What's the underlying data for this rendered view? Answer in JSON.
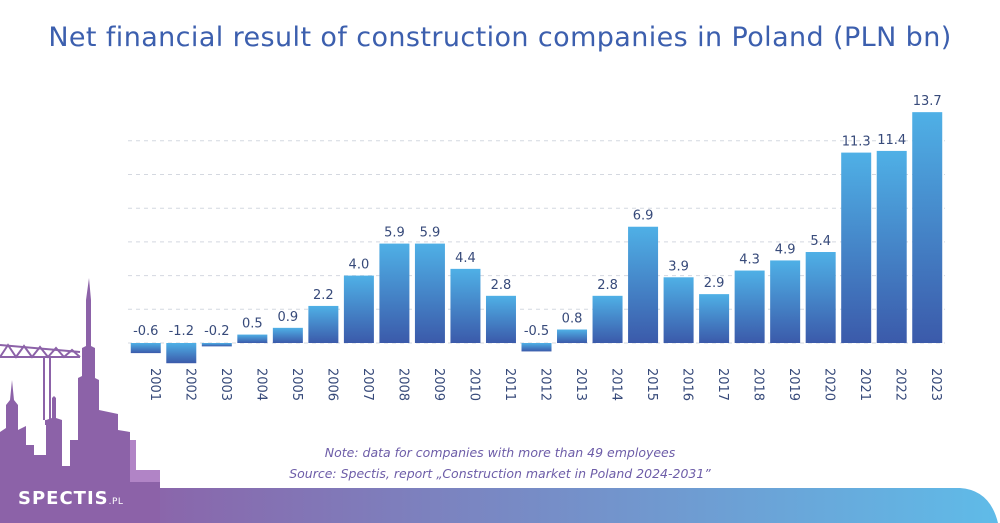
{
  "colors": {
    "title": "#3c5fae",
    "bar_top": "#4fb0e6",
    "bar_bottom": "#3b5aaa",
    "label": "#374a7a",
    "grid": "#d4d8e0",
    "note": "#6d5da8",
    "footer_left": "#8c62a8",
    "footer_right": "#5fbbe8"
  },
  "brand": {
    "name": "SPECTIS",
    "suffix": ".PL"
  },
  "notes": {
    "note": "Note: data for companies with more than 49 employees",
    "source": "Source: Spectis, report „Construction market in Poland 2024-2031”"
  },
  "chart_data": {
    "type": "bar",
    "title": "Net financial result of construction companies in Poland (PLN bn)",
    "categories": [
      "2001",
      "2002",
      "2003",
      "2004",
      "2005",
      "2006",
      "2007",
      "2008",
      "2009",
      "2010",
      "2011",
      "2012",
      "2013",
      "2014",
      "2015",
      "2016",
      "2017",
      "2018",
      "2019",
      "2020",
      "2021",
      "2022",
      "2023"
    ],
    "values": [
      -0.6,
      -1.2,
      -0.2,
      0.5,
      0.9,
      2.2,
      4.0,
      5.9,
      5.9,
      4.4,
      2.8,
      -0.5,
      0.8,
      2.8,
      6.9,
      3.9,
      2.9,
      4.3,
      4.9,
      5.4,
      11.3,
      11.4,
      13.7
    ],
    "value_labels": [
      "-0.6",
      "-1.2",
      "-0.2",
      "0.5",
      "0.9",
      "2.2",
      "4.0",
      "5.9",
      "5.9",
      "4.4",
      "2.8",
      "-0.5",
      "0.8",
      "2.8",
      "6.9",
      "3.9",
      "2.9",
      "4.3",
      "4.9",
      "5.4",
      "11.3",
      "11.4",
      "13.7"
    ],
    "ylim": [
      -1.2,
      13.7
    ],
    "grid": true,
    "legend": "none",
    "xlabel": "",
    "ylabel": ""
  }
}
